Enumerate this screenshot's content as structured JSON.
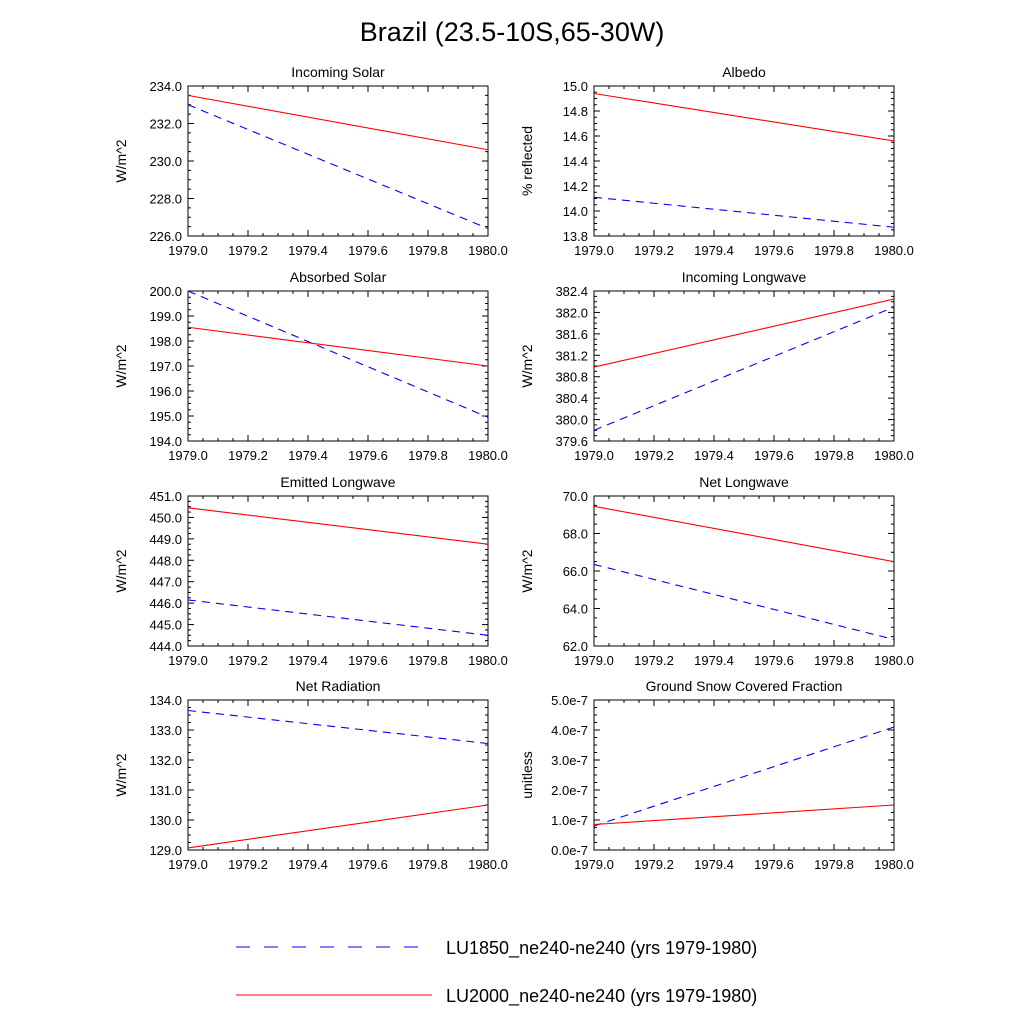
{
  "title": "Brazil (23.5-10S,65-30W)",
  "legend": [
    {
      "label": "LU1850_ne240-ne240 (yrs 1979-1980)",
      "color": "#0000ff",
      "dash": true
    },
    {
      "label": "LU2000_ne240-ne240 (yrs 1979-1980)",
      "color": "#ff0000",
      "dash": false
    }
  ],
  "chart_data": [
    {
      "type": "line",
      "title": "Incoming Solar",
      "ylabel": "W/m^2",
      "x": [
        1979.0,
        1980.0
      ],
      "xlim": [
        1979.0,
        1980.0
      ],
      "xticks": [
        "1979.0",
        "1979.2",
        "1979.4",
        "1979.6",
        "1979.8",
        "1980.0"
      ],
      "ylim": [
        226.0,
        234.0
      ],
      "yticks": [
        "226.0",
        "228.0",
        "230.0",
        "232.0",
        "234.0"
      ],
      "series": [
        {
          "name": "LU1850_ne240-ne240 (yrs 1979-1980)",
          "values": [
            233.0,
            226.4
          ]
        },
        {
          "name": "LU2000_ne240-ne240 (yrs 1979-1980)",
          "values": [
            233.5,
            230.6
          ]
        }
      ]
    },
    {
      "type": "line",
      "title": "Albedo",
      "ylabel": "% reflected",
      "x": [
        1979.0,
        1980.0
      ],
      "xlim": [
        1979.0,
        1980.0
      ],
      "xticks": [
        "1979.0",
        "1979.2",
        "1979.4",
        "1979.6",
        "1979.8",
        "1980.0"
      ],
      "ylim": [
        13.8,
        15.0
      ],
      "yticks": [
        "13.8",
        "14.0",
        "14.2",
        "14.4",
        "14.6",
        "14.8",
        "15.0"
      ],
      "series": [
        {
          "name": "LU1850_ne240-ne240 (yrs 1979-1980)",
          "values": [
            14.11,
            13.87
          ]
        },
        {
          "name": "LU2000_ne240-ne240 (yrs 1979-1980)",
          "values": [
            14.94,
            14.56
          ]
        }
      ]
    },
    {
      "type": "line",
      "title": "Absorbed Solar",
      "ylabel": "W/m^2",
      "x": [
        1979.0,
        1980.0
      ],
      "xlim": [
        1979.0,
        1980.0
      ],
      "xticks": [
        "1979.0",
        "1979.2",
        "1979.4",
        "1979.6",
        "1979.8",
        "1980.0"
      ],
      "ylim": [
        194.0,
        200.0
      ],
      "yticks": [
        "194.0",
        "195.0",
        "196.0",
        "197.0",
        "198.0",
        "199.0",
        "200.0"
      ],
      "series": [
        {
          "name": "LU1850_ne240-ne240 (yrs 1979-1980)",
          "values": [
            200.0,
            194.95
          ]
        },
        {
          "name": "LU2000_ne240-ne240 (yrs 1979-1980)",
          "values": [
            198.55,
            197.0
          ]
        }
      ]
    },
    {
      "type": "line",
      "title": "Incoming Longwave",
      "ylabel": "W/m^2",
      "x": [
        1979.0,
        1980.0
      ],
      "xlim": [
        1979.0,
        1980.0
      ],
      "xticks": [
        "1979.0",
        "1979.2",
        "1979.4",
        "1979.6",
        "1979.8",
        "1980.0"
      ],
      "ylim": [
        379.6,
        382.4
      ],
      "yticks": [
        "379.6",
        "380.0",
        "380.4",
        "380.8",
        "381.2",
        "381.6",
        "382.0",
        "382.4"
      ],
      "series": [
        {
          "name": "LU1850_ne240-ne240 (yrs 1979-1980)",
          "values": [
            379.8,
            382.1
          ]
        },
        {
          "name": "LU2000_ne240-ne240 (yrs 1979-1980)",
          "values": [
            380.98,
            382.25
          ]
        }
      ]
    },
    {
      "type": "line",
      "title": "Emitted Longwave",
      "ylabel": "W/m^2",
      "x": [
        1979.0,
        1980.0
      ],
      "xlim": [
        1979.0,
        1980.0
      ],
      "xticks": [
        "1979.0",
        "1979.2",
        "1979.4",
        "1979.6",
        "1979.8",
        "1980.0"
      ],
      "ylim": [
        444.0,
        451.0
      ],
      "yticks": [
        "444.0",
        "445.0",
        "446.0",
        "447.0",
        "448.0",
        "449.0",
        "450.0",
        "451.0"
      ],
      "series": [
        {
          "name": "LU1850_ne240-ne240 (yrs 1979-1980)",
          "values": [
            446.15,
            444.5
          ]
        },
        {
          "name": "LU2000_ne240-ne240 (yrs 1979-1980)",
          "values": [
            450.45,
            448.75
          ]
        }
      ]
    },
    {
      "type": "line",
      "title": "Net Longwave",
      "ylabel": "W/m^2",
      "x": [
        1979.0,
        1980.0
      ],
      "xlim": [
        1979.0,
        1980.0
      ],
      "xticks": [
        "1979.0",
        "1979.2",
        "1979.4",
        "1979.6",
        "1979.8",
        "1980.0"
      ],
      "ylim": [
        62.0,
        70.0
      ],
      "yticks": [
        "62.0",
        "64.0",
        "66.0",
        "68.0",
        "70.0"
      ],
      "series": [
        {
          "name": "LU1850_ne240-ne240 (yrs 1979-1980)",
          "values": [
            66.35,
            62.35
          ]
        },
        {
          "name": "LU2000_ne240-ne240 (yrs 1979-1980)",
          "values": [
            69.45,
            66.5
          ]
        }
      ]
    },
    {
      "type": "line",
      "title": "Net Radiation",
      "ylabel": "W/m^2",
      "x": [
        1979.0,
        1980.0
      ],
      "xlim": [
        1979.0,
        1980.0
      ],
      "xticks": [
        "1979.0",
        "1979.2",
        "1979.4",
        "1979.6",
        "1979.8",
        "1980.0"
      ],
      "ylim": [
        129.0,
        134.0
      ],
      "yticks": [
        "129.0",
        "130.0",
        "131.0",
        "132.0",
        "133.0",
        "134.0"
      ],
      "series": [
        {
          "name": "LU1850_ne240-ne240 (yrs 1979-1980)",
          "values": [
            133.65,
            132.55
          ]
        },
        {
          "name": "LU2000_ne240-ne240 (yrs 1979-1980)",
          "values": [
            129.07,
            130.5
          ]
        }
      ]
    },
    {
      "type": "line",
      "title": "Ground Snow Covered Fraction",
      "ylabel": "unitless",
      "x": [
        1979.0,
        1980.0
      ],
      "xlim": [
        1979.0,
        1980.0
      ],
      "xticks": [
        "1979.0",
        "1979.2",
        "1979.4",
        "1979.6",
        "1979.8",
        "1980.0"
      ],
      "ylim": [
        0.0,
        5e-07
      ],
      "yticks": [
        "0.0e-7",
        "1.0e-7",
        "2.0e-7",
        "3.0e-7",
        "4.0e-7",
        "5.0e-7"
      ],
      "series": [
        {
          "name": "LU1850_ne240-ne240 (yrs 1979-1980)",
          "values": [
            8e-08,
            4.1e-07
          ]
        },
        {
          "name": "LU2000_ne240-ne240 (yrs 1979-1980)",
          "values": [
            8.5e-08,
            1.5e-07
          ]
        }
      ]
    }
  ]
}
